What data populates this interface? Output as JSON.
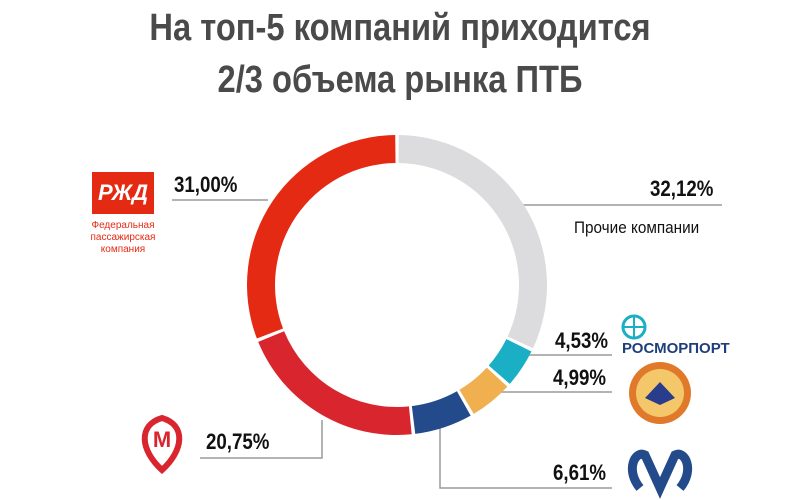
{
  "title_lines": [
    "На топ-5 компаний приходится",
    "2/3 объема рынка ПТБ"
  ],
  "chart_data": {
    "type": "pie",
    "donut": true,
    "title": "На топ-5 компаний приходится 2/3 объема рынка ПТБ",
    "slices": [
      {
        "name": "Прочие компании",
        "value": 32.12,
        "label": "32,12%",
        "color": "#dcdcdf"
      },
      {
        "name": "Росморпорт",
        "value": 4.53,
        "label": "4,53%",
        "color": "#1aafc4"
      },
      {
        "name": "Росгвардия ФГУП Охрана",
        "value": 4.99,
        "label": "4,99%",
        "color": "#f0b050"
      },
      {
        "name": "Метрополитен Санкт-Петербурга",
        "value": 6.61,
        "label": "6,61%",
        "color": "#234b8c"
      },
      {
        "name": "Московский метрополитен",
        "value": 20.75,
        "label": "20,75%",
        "color": "#d9262e"
      },
      {
        "name": "Федеральная пассажирская компания",
        "value": 31.0,
        "label": "31,00%",
        "color": "#e52a14"
      }
    ]
  },
  "logos": {
    "rzd_mark": "РЖД",
    "rzd_caption": "Федеральная пассажирская компания",
    "rosmorport": "РОСМОРПОРТ",
    "others_caption": "Прочие компании"
  }
}
